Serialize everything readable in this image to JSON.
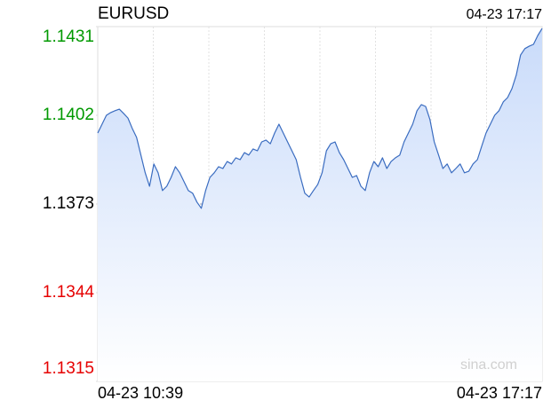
{
  "chart_data": {
    "type": "line",
    "title": "EURUSD",
    "timestamp": "04-23 17:17",
    "watermark": "sina.com",
    "xticks": [
      "04-23 10:39",
      "04-23 17:17"
    ],
    "ylim": [
      1.1315,
      1.1431
    ],
    "yticks": [
      1.1431,
      1.1402,
      1.1373,
      1.1344,
      1.1315
    ],
    "reference": 1.1373,
    "up_color": "#009900",
    "down_color": "#e60000",
    "flat_color": "#000000",
    "series": [
      {
        "name": "EURUSD",
        "color": "#3a6cc0",
        "values": [
          1.13962,
          1.13991,
          1.1402,
          1.14029,
          1.14035,
          1.1404,
          1.14026,
          1.14011,
          1.13977,
          1.13948,
          1.1389,
          1.13832,
          1.13788,
          1.13861,
          1.13832,
          1.13774,
          1.13788,
          1.13817,
          1.13852,
          1.13832,
          1.13803,
          1.13774,
          1.13765,
          1.13736,
          1.13716,
          1.13774,
          1.13817,
          1.13832,
          1.13852,
          1.13846,
          1.13869,
          1.13861,
          1.13881,
          1.13875,
          1.13898,
          1.1389,
          1.1391,
          1.13904,
          1.13933,
          1.13939,
          1.13927,
          1.13962,
          1.13991,
          1.13962,
          1.13933,
          1.13904,
          1.13875,
          1.13817,
          1.13765,
          1.13753,
          1.13774,
          1.13794,
          1.13832,
          1.13904,
          1.13927,
          1.13933,
          1.13898,
          1.13875,
          1.13846,
          1.13817,
          1.13823,
          1.13788,
          1.13774,
          1.13832,
          1.13869,
          1.13852,
          1.13881,
          1.13846,
          1.13869,
          1.13881,
          1.1389,
          1.13933,
          1.13962,
          1.13991,
          1.14035,
          1.14055,
          1.14049,
          1.14006,
          1.13933,
          1.1389,
          1.13846,
          1.13861,
          1.13832,
          1.13846,
          1.13861,
          1.13832,
          1.13837,
          1.13861,
          1.13875,
          1.13919,
          1.13962,
          1.13991,
          1.1402,
          1.14035,
          1.14064,
          1.14078,
          1.14107,
          1.14151,
          1.14217,
          1.14238,
          1.14246,
          1.14252,
          1.14281,
          1.14304
        ]
      }
    ]
  }
}
